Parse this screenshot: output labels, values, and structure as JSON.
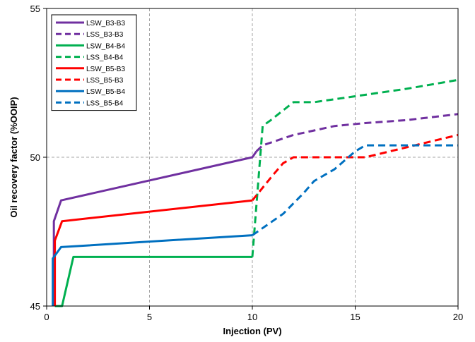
{
  "chart_data": {
    "type": "line",
    "title": "",
    "xlabel": "Injection (PV)",
    "ylabel": "Oil recovery factor (%OOIP)",
    "xlim": [
      0,
      20
    ],
    "ylim": [
      45,
      55
    ],
    "xticks": [
      0,
      5,
      10,
      15,
      20
    ],
    "yticks": [
      45,
      50,
      55
    ],
    "grid": true,
    "legend_position": "top-left",
    "series": [
      {
        "name": "LSW_B3-B3",
        "color": "#7030a0",
        "dash": "solid",
        "x": [
          0.35,
          0.35,
          0.7,
          10.0,
          10.2
        ],
        "y": [
          45.0,
          47.85,
          48.55,
          50.0,
          50.2
        ]
      },
      {
        "name": "LSS_B3-B3",
        "color": "#7030a0",
        "dash": "dashed",
        "x": [
          10.2,
          10.5,
          12.0,
          14.0,
          15.5,
          17.5,
          20.0
        ],
        "y": [
          50.2,
          50.4,
          50.75,
          51.05,
          51.15,
          51.25,
          51.45
        ]
      },
      {
        "name": "LSW_B4-B4",
        "color": "#00b050",
        "dash": "solid",
        "x": [
          0.4,
          0.75,
          1.3,
          10.0
        ],
        "y": [
          45.0,
          45.0,
          46.65,
          46.65
        ]
      },
      {
        "name": "LSS_B4-B4",
        "color": "#00b050",
        "dash": "dashed",
        "x": [
          10.0,
          10.5,
          10.9,
          12.0,
          13.0,
          15.0,
          17.5,
          20.0
        ],
        "y": [
          46.65,
          51.05,
          51.25,
          51.85,
          51.85,
          52.05,
          52.3,
          52.6
        ]
      },
      {
        "name": "LSW_B5-B3",
        "color": "#ff0000",
        "dash": "solid",
        "x": [
          0.4,
          0.4,
          0.75,
          10.0
        ],
        "y": [
          45.0,
          47.2,
          47.85,
          48.55
        ]
      },
      {
        "name": "LSS_B5-B3",
        "color": "#ff0000",
        "dash": "dashed",
        "x": [
          10.0,
          11.0,
          11.5,
          12.0,
          15.5,
          20.0
        ],
        "y": [
          48.55,
          49.4,
          49.8,
          50.0,
          50.0,
          50.75
        ]
      },
      {
        "name": "LSW_B5-B4",
        "color": "#0070c0",
        "dash": "solid",
        "x": [
          0.3,
          0.3,
          0.7,
          10.0
        ],
        "y": [
          45.0,
          46.6,
          46.98,
          47.38
        ]
      },
      {
        "name": "LSS_B5-B4",
        "color": "#0070c0",
        "dash": "dashed",
        "x": [
          10.0,
          11.5,
          12.5,
          13.0,
          14.0,
          15.0,
          15.5,
          20.0
        ],
        "y": [
          47.38,
          48.1,
          48.8,
          49.2,
          49.6,
          50.2,
          50.4,
          50.4
        ]
      }
    ]
  }
}
